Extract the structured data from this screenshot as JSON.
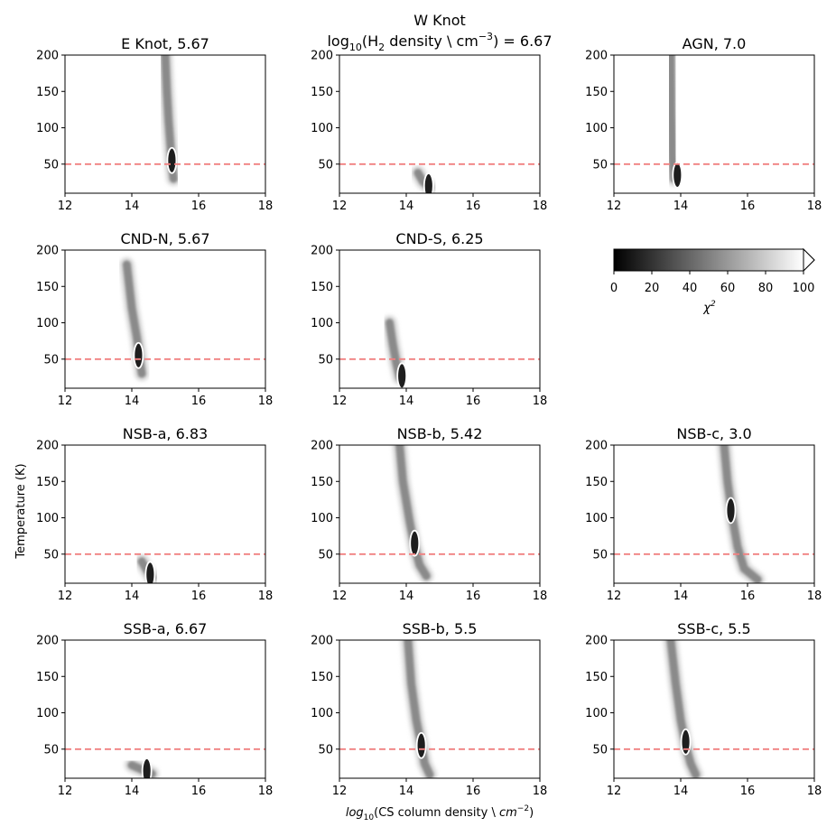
{
  "figure": {
    "top_title_line1": "W Knot",
    "top_title_line2_prefix": "log",
    "top_title_line2_sub": "10",
    "top_title_line2_mid": "(H",
    "top_title_line2_sub2": "2",
    "top_title_line2_rest": " density \\ cm",
    "top_title_line2_sup": "−3",
    "top_title_line2_end": ") = 6.67",
    "xlabel_prefix": "log",
    "xlabel_sub": "10",
    "xlabel_mid": "(CS column density  \\  ",
    "xlabel_unit": "cm",
    "xlabel_sup": "−2",
    "xlabel_end": ")",
    "ylabel": "Temperature (K)"
  },
  "colorbar": {
    "ticks": [
      "0",
      "20",
      "40",
      "60",
      "80",
      "100"
    ],
    "label": "χ",
    "label_sup": "2",
    "range": [
      0,
      100
    ],
    "extend": "max",
    "cmap": "grey_r"
  },
  "chart_data": [
    {
      "type": "heatmap",
      "name": "e-knot",
      "title": "E Knot, 5.67",
      "xlim": [
        12,
        18
      ],
      "ylim": [
        10,
        200
      ],
      "xticks": [
        "12",
        "14",
        "16",
        "18"
      ],
      "yticks": [
        "50",
        "100",
        "150",
        "200"
      ],
      "threshold_T": 50,
      "ridge": [
        [
          15.0,
          200
        ],
        [
          15.05,
          150
        ],
        [
          15.1,
          110
        ],
        [
          15.15,
          80
        ],
        [
          15.2,
          50
        ],
        [
          15.25,
          30
        ]
      ],
      "min": [
        15.2,
        55
      ],
      "contour": true
    },
    {
      "type": "heatmap",
      "name": "w-knot",
      "title": "",
      "xlim": [
        12,
        18
      ],
      "ylim": [
        10,
        200
      ],
      "xticks": [
        "12",
        "14",
        "16",
        "18"
      ],
      "yticks": [
        "50",
        "100",
        "150",
        "200"
      ],
      "threshold_T": 50,
      "ridge": [
        [
          14.35,
          38
        ],
        [
          14.5,
          26
        ],
        [
          14.7,
          18
        ]
      ],
      "min": [
        14.67,
        20
      ],
      "contour": true
    },
    {
      "type": "heatmap",
      "name": "agn",
      "title": "AGN, 7.0",
      "xlim": [
        12,
        18
      ],
      "ylim": [
        10,
        200
      ],
      "xticks": [
        "12",
        "14",
        "16",
        "18"
      ],
      "yticks": [
        "50",
        "100",
        "150",
        "200"
      ],
      "threshold_T": 50,
      "ridge": [
        [
          13.7,
          200
        ],
        [
          13.72,
          120
        ],
        [
          13.75,
          60
        ],
        [
          13.8,
          30
        ]
      ],
      "min": [
        13.9,
        35
      ],
      "contour": true
    },
    {
      "type": "heatmap",
      "name": "cnd-n",
      "title": "CND-N, 5.67",
      "xlim": [
        12,
        18
      ],
      "ylim": [
        10,
        200
      ],
      "xticks": [
        "12",
        "14",
        "16",
        "18"
      ],
      "yticks": [
        "50",
        "100",
        "150",
        "200"
      ],
      "threshold_T": 50,
      "ridge": [
        [
          13.85,
          180
        ],
        [
          14.0,
          120
        ],
        [
          14.15,
          80
        ],
        [
          14.25,
          45
        ],
        [
          14.3,
          30
        ]
      ],
      "min": [
        14.2,
        55
      ],
      "contour": true
    },
    {
      "type": "heatmap",
      "name": "cnd-s",
      "title": "CND-S, 6.25",
      "xlim": [
        12,
        18
      ],
      "ylim": [
        10,
        200
      ],
      "xticks": [
        "12",
        "14",
        "16",
        "18"
      ],
      "yticks": [
        "50",
        "100",
        "150",
        "200"
      ],
      "threshold_T": 50,
      "ridge": [
        [
          13.5,
          100
        ],
        [
          13.6,
          70
        ],
        [
          13.7,
          45
        ],
        [
          13.8,
          25
        ]
      ],
      "min": [
        13.87,
        27
      ],
      "contour": true
    },
    {
      "type": "heatmap",
      "name": "nsb-a",
      "title": "NSB-a, 6.83",
      "xlim": [
        12,
        18
      ],
      "ylim": [
        10,
        200
      ],
      "xticks": [
        "12",
        "14",
        "16",
        "18"
      ],
      "yticks": [
        "50",
        "100",
        "150",
        "200"
      ],
      "threshold_T": 50,
      "ridge": [
        [
          14.3,
          40
        ],
        [
          14.45,
          28
        ],
        [
          14.6,
          18
        ]
      ],
      "min": [
        14.55,
        22
      ],
      "contour": true
    },
    {
      "type": "heatmap",
      "name": "nsb-b",
      "title": "NSB-b, 5.42",
      "xlim": [
        12,
        18
      ],
      "ylim": [
        10,
        200
      ],
      "xticks": [
        "12",
        "14",
        "16",
        "18"
      ],
      "yticks": [
        "50",
        "100",
        "150",
        "200"
      ],
      "threshold_T": 50,
      "ridge": [
        [
          13.8,
          200
        ],
        [
          13.9,
          150
        ],
        [
          14.1,
          95
        ],
        [
          14.25,
          60
        ],
        [
          14.4,
          35
        ],
        [
          14.6,
          20
        ]
      ],
      "min": [
        14.25,
        65
      ],
      "contour": true
    },
    {
      "type": "heatmap",
      "name": "nsb-c",
      "title": "NSB-c, 3.0",
      "xlim": [
        12,
        18
      ],
      "ylim": [
        10,
        200
      ],
      "xticks": [
        "12",
        "14",
        "16",
        "18"
      ],
      "yticks": [
        "50",
        "100",
        "150",
        "200"
      ],
      "threshold_T": 50,
      "ridge": [
        [
          15.3,
          200
        ],
        [
          15.4,
          150
        ],
        [
          15.55,
          100
        ],
        [
          15.7,
          60
        ],
        [
          15.9,
          30
        ],
        [
          16.3,
          15
        ]
      ],
      "min": [
        15.5,
        110
      ],
      "contour": true
    },
    {
      "type": "heatmap",
      "name": "ssb-a",
      "title": "SSB-a, 6.67",
      "xlim": [
        12,
        18
      ],
      "ylim": [
        10,
        200
      ],
      "xticks": [
        "12",
        "14",
        "16",
        "18"
      ],
      "yticks": [
        "50",
        "100",
        "150",
        "200"
      ],
      "threshold_T": 50,
      "ridge": [
        [
          14.0,
          28
        ],
        [
          14.3,
          22
        ],
        [
          14.6,
          16
        ]
      ],
      "min": [
        14.45,
        20
      ],
      "contour": true
    },
    {
      "type": "heatmap",
      "name": "ssb-b",
      "title": "SSB-b, 5.5",
      "xlim": [
        12,
        18
      ],
      "ylim": [
        10,
        200
      ],
      "xticks": [
        "12",
        "14",
        "16",
        "18"
      ],
      "yticks": [
        "50",
        "100",
        "150",
        "200"
      ],
      "threshold_T": 50,
      "ridge": [
        [
          14.05,
          200
        ],
        [
          14.15,
          140
        ],
        [
          14.3,
          90
        ],
        [
          14.45,
          55
        ],
        [
          14.55,
          30
        ],
        [
          14.7,
          15
        ]
      ],
      "min": [
        14.45,
        55
      ],
      "contour": true
    },
    {
      "type": "heatmap",
      "name": "ssb-c",
      "title": "SSB-c, 5.5",
      "xlim": [
        12,
        18
      ],
      "ylim": [
        10,
        200
      ],
      "xticks": [
        "12",
        "14",
        "16",
        "18"
      ],
      "yticks": [
        "50",
        "100",
        "150",
        "200"
      ],
      "threshold_T": 50,
      "ridge": [
        [
          13.7,
          200
        ],
        [
          13.85,
          140
        ],
        [
          14.0,
          90
        ],
        [
          14.15,
          55
        ],
        [
          14.3,
          30
        ],
        [
          14.45,
          15
        ]
      ],
      "min": [
        14.15,
        60
      ],
      "contour": true
    }
  ]
}
